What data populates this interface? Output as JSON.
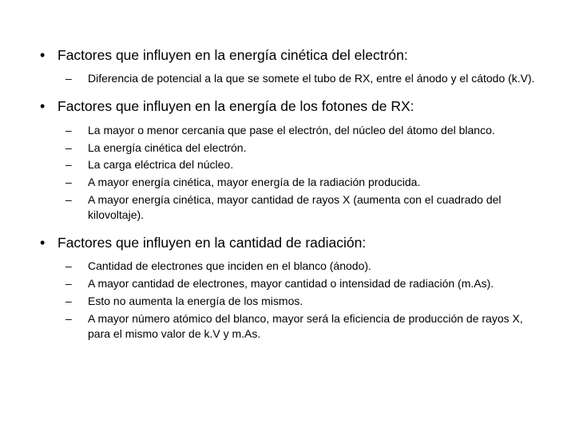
{
  "background_color": "#ffffff",
  "text_color": "#000000",
  "font_family": "Arial",
  "heading_fontsize": 17.5,
  "sub_fontsize": 14,
  "sections": [
    {
      "heading": "Factores que influyen en la energía cinética del electrón:",
      "items": [
        "Diferencia de potencial a la que se somete el tubo de RX, entre el ánodo y el cátodo (k.V)."
      ]
    },
    {
      "heading": "Factores que influyen en la energía de los fotones de RX:",
      "items": [
        "La mayor o menor cercanía que pase el electrón, del núcleo del átomo del blanco.",
        "La energía cinética del electrón.",
        "La carga eléctrica del núcleo.",
        "A mayor energía cinética, mayor energía de la radiación producida.",
        "A mayor energía cinética, mayor cantidad de rayos X (aumenta con el cuadrado del kilovoltaje)."
      ]
    },
    {
      "heading": "Factores que influyen en la cantidad de radiación:",
      "items": [
        "Cantidad de electrones que inciden en el blanco (ánodo).",
        "A mayor cantidad de electrones, mayor cantidad o intensidad de radiación (m.As).",
        "Esto no aumenta la energía de los mismos.",
        "A mayor número atómico del blanco, mayor será la eficiencia de producción de rayos X, para el mismo valor de k.V y m.As."
      ]
    }
  ]
}
